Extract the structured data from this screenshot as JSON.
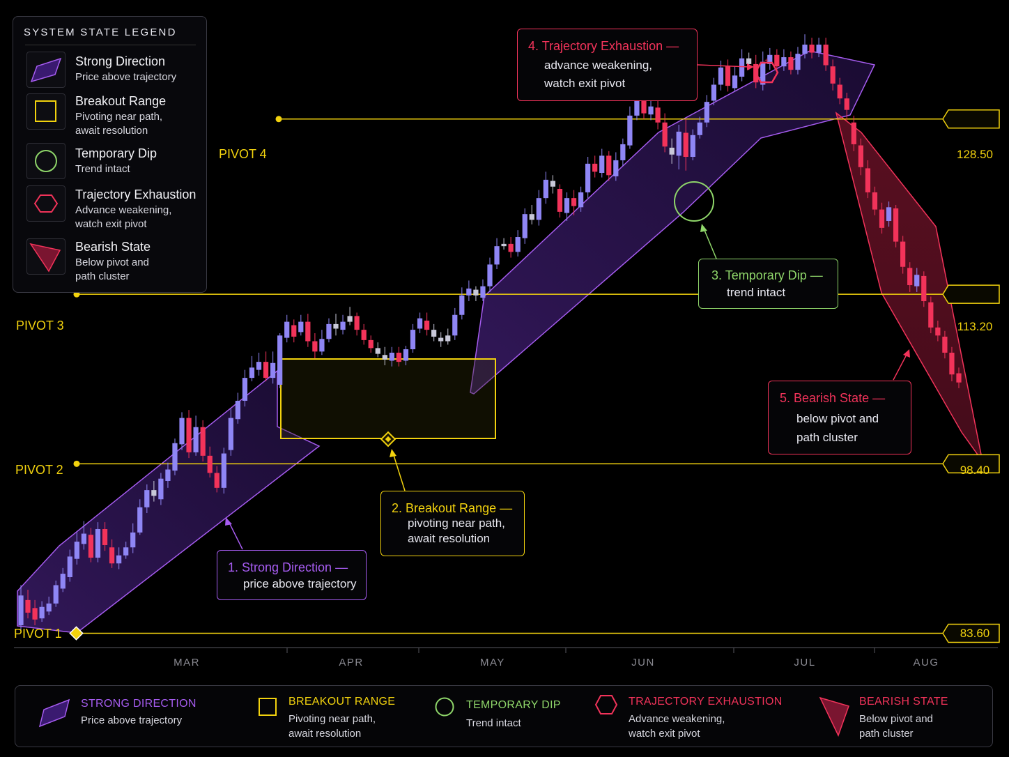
{
  "legend": {
    "title": "SYSTEM STATE LEGEND",
    "items": [
      {
        "label": "Strong Direction",
        "sub": "Price above trajectory",
        "icon": "parallelogram-icon"
      },
      {
        "label": "Breakout Range",
        "sub": "Pivoting near path,\nawait resolution",
        "icon": "square-icon"
      },
      {
        "label": "Temporary Dip",
        "sub": "Trend intact",
        "icon": "circle-icon"
      },
      {
        "label": "Trajectory Exhaustion",
        "sub": "Advance weakening,\nwatch exit pivot",
        "icon": "hexagon-icon"
      },
      {
        "label": "Bearish State",
        "sub": "Below pivot and\npath cluster",
        "icon": "triangle-icon"
      }
    ]
  },
  "callouts": {
    "c1": {
      "title": "1.  Strong Direction —",
      "sub": "price above trajectory"
    },
    "c2": {
      "title": "2.  Breakout Range —",
      "sub": "pivoting near path,\nawait resolution"
    },
    "c3": {
      "title": "3.  Temporary Dip —",
      "sub": "trend intact"
    },
    "c4": {
      "title": "4.  Trajectory Exhaustion —",
      "sub": "advance weakening,\nwatch exit pivot"
    },
    "c5": {
      "title": "5.  Bearish State —",
      "sub": "below pivot and\npath cluster"
    }
  },
  "pivots": [
    {
      "label": "PIVOT 1",
      "price": "83.60"
    },
    {
      "label": "PIVOT 2",
      "price": "98.40"
    },
    {
      "label": "PIVOT 3",
      "price": "113.20"
    },
    {
      "label": "PIVOT 4",
      "price": "128.50"
    }
  ],
  "months": [
    "MAR",
    "APR",
    "MAY",
    "JUN",
    "JUL",
    "AUG"
  ],
  "bottom_legend": [
    {
      "title": "STRONG DIRECTION",
      "sub": "Price above trajectory",
      "color": "#a65cf0"
    },
    {
      "title": "BREAKOUT RANGE",
      "sub": "Pivoting near path,\nawait resolution",
      "color": "#f2d20e"
    },
    {
      "title": "TEMPORARY DIP",
      "sub": "Trend intact",
      "color": "#8fd66a"
    },
    {
      "title": "TRAJECTORY EXHAUSTION",
      "sub": "Advance weakening,\nwatch exit pivot",
      "color": "#f2335a"
    },
    {
      "title": "BEARISH STATE",
      "sub": "Below pivot and\npath cluster",
      "color": "#f2335a"
    }
  ],
  "colors": {
    "bull": "#8f86f5",
    "bear": "#f2335a",
    "neutral": "#c8c8d8",
    "pivot": "#f2d20e",
    "direction": "#a65cf0",
    "dip": "#8fd66a"
  },
  "chart_data": {
    "type": "candlestick",
    "title": "",
    "y_ticks": [
      83.6,
      98.4,
      113.2,
      128.5
    ],
    "ylim": [
      82,
      142
    ],
    "x_ticks": [
      "MAR",
      "APR",
      "MAY",
      "JUN",
      "JUL",
      "AUG"
    ],
    "candles": [
      [
        84.3,
        86.9,
        83.8,
        87.8
      ],
      [
        86.5,
        85.4,
        84.9,
        87.4
      ],
      [
        85.8,
        84.8,
        84.3,
        86.5
      ],
      [
        84.9,
        85.9,
        84.6,
        86.4
      ],
      [
        85.5,
        86.2,
        85.2,
        86.8
      ],
      [
        86.2,
        87.8,
        85.9,
        88.2
      ],
      [
        87.5,
        88.8,
        87.2,
        89.3
      ],
      [
        88.5,
        90.3,
        88.1,
        90.9
      ],
      [
        90.1,
        91.6,
        89.6,
        92.4
      ],
      [
        91.4,
        92.3,
        90.9,
        93.4
      ],
      [
        92.2,
        90.2,
        89.8,
        92.8
      ],
      [
        90.2,
        92.7,
        89.8,
        93.3
      ],
      [
        92.7,
        91.3,
        90.8,
        93.3
      ],
      [
        91.1,
        89.7,
        89.3,
        91.8
      ],
      [
        89.7,
        90.4,
        89.2,
        91.1
      ],
      [
        90.4,
        91.1,
        90.1,
        91.6
      ],
      [
        91.1,
        92.4,
        90.6,
        93.2
      ],
      [
        92.4,
        94.6,
        92.2,
        95.3
      ],
      [
        94.6,
        96.1,
        94.1,
        96.6
      ],
      [
        96.1,
        95.6,
        95.1,
        96.9
      ],
      [
        95.3,
        97.1,
        94.8,
        97.6
      ],
      [
        96.9,
        97.9,
        96.3,
        98.5
      ],
      [
        97.8,
        100.2,
        97.4,
        100.6
      ],
      [
        100.1,
        102.4,
        99.6,
        102.9
      ],
      [
        102.4,
        99.4,
        98.9,
        103.1
      ],
      [
        99.4,
        101.6,
        99.1,
        102.6
      ],
      [
        101.6,
        99.1,
        98.6,
        102.2
      ],
      [
        99.1,
        97.6,
        97.2,
        99.9
      ],
      [
        97.6,
        96.3,
        95.9,
        98.2
      ],
      [
        96.3,
        99.3,
        95.8,
        99.8
      ],
      [
        99.6,
        102.4,
        99.1,
        103.2
      ],
      [
        102.3,
        103.9,
        101.9,
        104.6
      ],
      [
        103.9,
        105.9,
        103.4,
        106.6
      ],
      [
        105.9,
        106.8,
        105.6,
        107.8
      ],
      [
        106.6,
        107.3,
        106.1,
        108.1
      ],
      [
        107.3,
        105.9,
        105.6,
        108.2
      ],
      [
        105.9,
        107.2,
        105.4,
        108.2
      ],
      [
        105.3,
        109.6,
        105.0,
        109.8
      ],
      [
        109.4,
        110.8,
        109.0,
        111.4
      ],
      [
        110.5,
        109.5,
        109.0,
        111.0
      ],
      [
        109.9,
        110.8,
        109.6,
        111.4
      ],
      [
        110.8,
        109.1,
        108.6,
        111.5
      ],
      [
        109.1,
        108.2,
        107.6,
        109.8
      ],
      [
        108.2,
        109.3,
        107.9,
        110.1
      ],
      [
        109.3,
        110.6,
        109.0,
        111.1
      ],
      [
        110.6,
        110.2,
        109.6,
        111.5
      ],
      [
        110.1,
        110.8,
        109.7,
        111.4
      ],
      [
        110.8,
        111.3,
        110.5,
        112.1
      ],
      [
        111.3,
        110.1,
        109.6,
        111.6
      ],
      [
        110.1,
        109.2,
        108.8,
        110.6
      ],
      [
        109.2,
        108.5,
        108.1,
        109.6
      ],
      [
        108.5,
        108.0,
        107.7,
        109.0
      ],
      [
        107.9,
        107.5,
        107.0,
        108.6
      ],
      [
        107.4,
        108.1,
        106.9,
        108.6
      ],
      [
        108.1,
        107.3,
        106.9,
        108.6
      ],
      [
        107.4,
        108.4,
        107.0,
        108.7
      ],
      [
        108.4,
        110.1,
        108.1,
        110.6
      ],
      [
        110.2,
        111.1,
        109.8,
        111.6
      ],
      [
        110.9,
        110.1,
        109.6,
        111.6
      ],
      [
        110.1,
        109.5,
        109.1,
        110.6
      ],
      [
        109.4,
        109.1,
        108.6,
        109.9
      ],
      [
        109.1,
        109.6,
        108.8,
        110.2
      ],
      [
        109.6,
        111.4,
        109.2,
        112.0
      ],
      [
        111.4,
        113.1,
        111.0,
        113.8
      ],
      [
        113.1,
        113.7,
        112.6,
        114.4
      ],
      [
        113.6,
        113.1,
        112.6,
        113.9
      ],
      [
        112.9,
        113.9,
        112.6,
        114.5
      ],
      [
        113.9,
        115.8,
        113.4,
        116.4
      ],
      [
        115.8,
        117.4,
        115.4,
        118.1
      ],
      [
        117.4,
        117.6,
        117.1,
        118.1
      ],
      [
        117.6,
        116.9,
        116.4,
        118.2
      ],
      [
        116.9,
        118.2,
        116.5,
        118.8
      ],
      [
        118.1,
        120.2,
        117.6,
        120.7
      ],
      [
        120.2,
        119.7,
        119.3,
        121.0
      ],
      [
        119.7,
        121.6,
        119.2,
        122.3
      ],
      [
        121.6,
        123.2,
        121.1,
        123.9
      ],
      [
        123.1,
        122.6,
        122.0,
        123.6
      ],
      [
        122.4,
        120.4,
        119.9,
        122.8
      ],
      [
        120.3,
        121.6,
        119.6,
        122.1
      ],
      [
        121.6,
        120.9,
        120.1,
        122.3
      ],
      [
        120.8,
        122.1,
        120.4,
        122.6
      ],
      [
        122.1,
        124.6,
        121.6,
        125.2
      ],
      [
        124.6,
        123.9,
        123.4,
        125.3
      ],
      [
        123.8,
        125.3,
        123.4,
        125.9
      ],
      [
        125.3,
        123.6,
        123.1,
        125.7
      ],
      [
        123.5,
        124.9,
        123.1,
        125.6
      ],
      [
        124.9,
        126.3,
        124.4,
        126.8
      ],
      [
        126.2,
        128.8,
        125.9,
        129.6
      ],
      [
        128.8,
        131.2,
        128.4,
        131.8
      ],
      [
        131.0,
        129.0,
        128.5,
        131.6
      ],
      [
        128.9,
        129.6,
        128.4,
        130.3
      ],
      [
        129.5,
        128.2,
        127.6,
        130.2
      ],
      [
        128.2,
        126.1,
        125.6,
        129.0
      ],
      [
        126.0,
        125.4,
        124.6,
        126.8
      ],
      [
        125.3,
        127.4,
        124.1,
        128.0
      ],
      [
        127.3,
        125.2,
        124.0,
        128.5
      ],
      [
        125.2,
        127.1,
        124.9,
        127.6
      ],
      [
        127.1,
        128.2,
        126.8,
        128.7
      ],
      [
        128.2,
        130.0,
        127.8,
        130.6
      ],
      [
        130.1,
        131.5,
        129.7,
        132.1
      ],
      [
        131.5,
        133.0,
        131.0,
        133.6
      ],
      [
        133.1,
        131.4,
        130.9,
        133.7
      ],
      [
        131.2,
        132.3,
        130.9,
        133.1
      ],
      [
        132.2,
        133.8,
        131.8,
        134.6
      ],
      [
        133.8,
        133.3,
        132.8,
        134.3
      ],
      [
        133.3,
        131.7,
        131.2,
        134.1
      ],
      [
        131.5,
        133.5,
        131.0,
        134.4
      ],
      [
        133.3,
        134.1,
        132.8,
        134.7
      ],
      [
        134.1,
        133.1,
        132.6,
        134.6
      ],
      [
        133.1,
        133.9,
        132.7,
        134.6
      ],
      [
        133.9,
        132.8,
        132.4,
        134.4
      ],
      [
        132.8,
        134.2,
        132.4,
        134.8
      ],
      [
        134.2,
        135.0,
        133.8,
        135.9
      ],
      [
        135.0,
        134.3,
        133.8,
        135.6
      ],
      [
        134.3,
        135.0,
        133.9,
        135.6
      ],
      [
        135.0,
        133.2,
        132.7,
        135.6
      ],
      [
        133.1,
        131.6,
        131.0,
        133.7
      ],
      [
        131.5,
        130.3,
        129.8,
        132.1
      ],
      [
        130.3,
        129.3,
        128.4,
        130.8
      ],
      [
        128.2,
        126.3,
        125.7,
        128.8
      ],
      [
        126.2,
        124.3,
        123.6,
        126.8
      ],
      [
        124.2,
        122.1,
        121.6,
        124.9
      ],
      [
        122.1,
        120.6,
        120.1,
        122.6
      ],
      [
        120.6,
        119.0,
        118.5,
        121.2
      ],
      [
        119.6,
        120.8,
        119.1,
        121.3
      ],
      [
        120.7,
        117.8,
        117.3,
        121.0
      ],
      [
        117.8,
        115.6,
        115.0,
        118.3
      ],
      [
        115.5,
        114.0,
        113.4,
        116.0
      ],
      [
        113.9,
        114.9,
        113.4,
        115.5
      ],
      [
        114.8,
        112.6,
        112.1,
        115.2
      ],
      [
        112.5,
        110.3,
        109.8,
        113.0
      ],
      [
        110.3,
        109.6,
        109.1,
        110.9
      ],
      [
        109.5,
        108.1,
        107.6,
        110.0
      ],
      [
        108.1,
        106.2,
        105.6,
        108.6
      ],
      [
        106.3,
        105.5,
        105.0,
        106.8
      ]
    ],
    "annotations": [
      "1.  Strong Direction — price above trajectory",
      "2.  Breakout Range — pivoting near path, await resolution",
      "3.  Temporary Dip — trend intact",
      "4.  Trajectory Exhaustion — advance weakening, watch exit pivot",
      "5.  Bearish State — below pivot and path cluster"
    ]
  }
}
